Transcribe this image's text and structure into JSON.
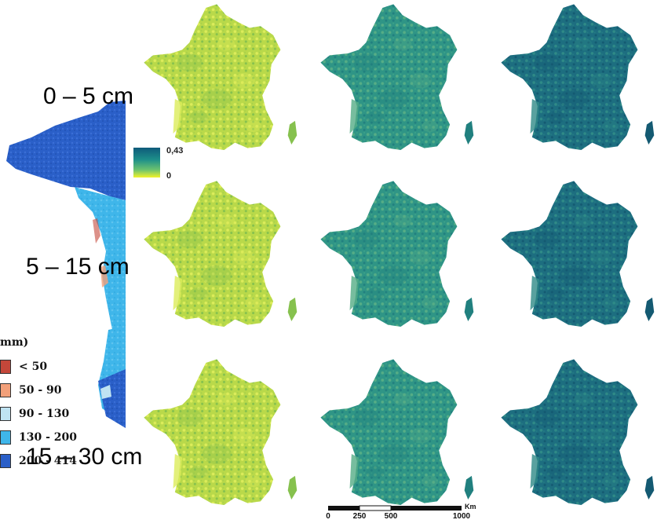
{
  "depth_labels": [
    "0 – 5 cm",
    "5 – 15 cm",
    "15 – 30 cm"
  ],
  "colorbar": {
    "max_label": "0,43",
    "min_label": "0",
    "colors": [
      "#0e5a7a",
      "#1d8f8a",
      "#6ec46e",
      "#f3f32a"
    ]
  },
  "background_map_legend": {
    "title": "mm)",
    "classes": [
      {
        "label": "< 50",
        "color": "#c4473a"
      },
      {
        "label": "50 - 90",
        "color": "#f2a07a"
      },
      {
        "label": "90 - 130",
        "color": "#bfe3f2"
      },
      {
        "label": "130 - 200",
        "color": "#3fb6ea"
      },
      {
        "label": "200 - 414",
        "color": "#2a5fc8"
      }
    ]
  },
  "map_grid": {
    "rows": 3,
    "columns": 3,
    "column_colors": [
      {
        "base": "#b9d94a",
        "light": "#dcec5a",
        "dark": "#86c14e"
      },
      {
        "base": "#2f9586",
        "light": "#55ad86",
        "dark": "#21807f"
      },
      {
        "base": "#1d6e80",
        "light": "#2f8a87",
        "dark": "#145a72"
      }
    ]
  },
  "scale_bar": {
    "ticks": [
      "0",
      "250",
      "500",
      "1000"
    ],
    "unit": "Km"
  }
}
